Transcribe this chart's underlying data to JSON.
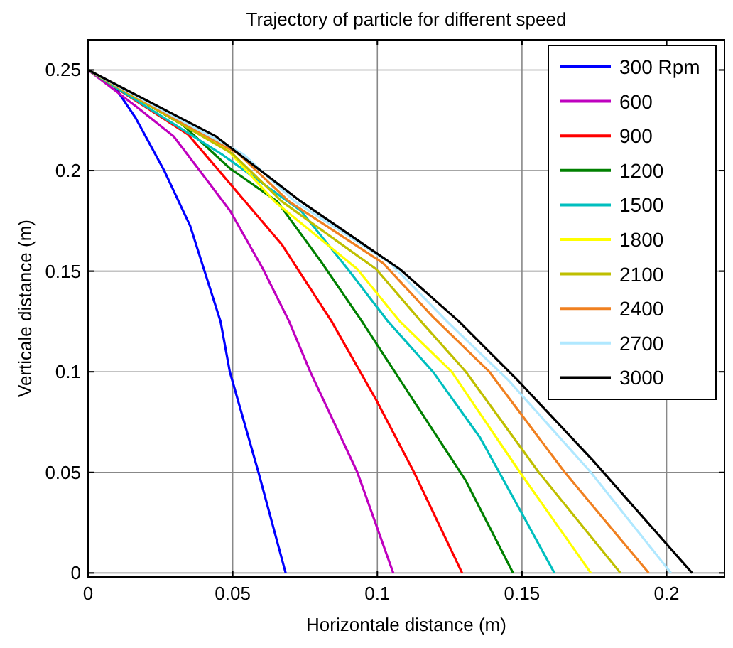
{
  "chart_data": {
    "type": "line",
    "title": "Trajectory of particle for different speed",
    "xlabel": "Horizontale distance (m)",
    "ylabel": "Verticale distance (m)",
    "xlim": [
      0,
      0.22
    ],
    "ylim": [
      -0.002,
      0.265
    ],
    "xticks": [
      0,
      0.05,
      0.1,
      0.15,
      0.2
    ],
    "yticks": [
      0,
      0.05,
      0.1,
      0.15,
      0.2,
      0.25
    ],
    "grid": true,
    "legend": "top right",
    "line_style": "solid",
    "marker": "none",
    "series": [
      {
        "name": "300 Rpm",
        "color": "#0000ff",
        "x": [
          0,
          0.0092,
          0.0165,
          0.0263,
          0.0353,
          0.0458,
          0.049,
          0.0589,
          0.0683
        ],
        "values": [
          0.25,
          0.2416,
          0.226,
          0.2,
          0.1725,
          0.125,
          0.1,
          0.05,
          0
        ]
      },
      {
        "name": "600",
        "color": "#bf00bf",
        "x": [
          0,
          0.0165,
          0.0296,
          0.0491,
          0.0605,
          0.0695,
          0.0768,
          0.0931,
          0.1055
        ],
        "values": [
          0.25,
          0.232,
          0.217,
          0.18,
          0.151,
          0.125,
          0.1,
          0.05,
          0
        ]
      },
      {
        "name": "900",
        "color": "#ff0000",
        "x": [
          0,
          0.0345,
          0.0458,
          0.0671,
          0.0842,
          0.0996,
          0.1127,
          0.1293
        ],
        "values": [
          0.25,
          0.218,
          0.199,
          0.163,
          0.125,
          0.086,
          0.05,
          0
        ]
      },
      {
        "name": "1200",
        "color": "#008000",
        "x": [
          0,
          0.0328,
          0.0491,
          0.0654,
          0.0809,
          0.0947,
          0.106,
          0.1306,
          0.1469
        ],
        "values": [
          0.25,
          0.2226,
          0.201,
          0.1846,
          0.154,
          0.125,
          0.1,
          0.0458,
          0
        ]
      },
      {
        "name": "1500",
        "color": "#00bfbf",
        "x": [
          0,
          0.046,
          0.0736,
          0.0898,
          0.1037,
          0.1192,
          0.1355,
          0.1502,
          0.1612
        ],
        "values": [
          0.25,
          0.2083,
          0.18,
          0.151,
          0.125,
          0.1,
          0.0673,
          0.029,
          0
        ]
      },
      {
        "name": "1800",
        "color": "#ffff00",
        "x": [
          0,
          0.048,
          0.0645,
          0.0931,
          0.1078,
          0.1257,
          0.1493,
          0.1738
        ],
        "values": [
          0.25,
          0.2106,
          0.1846,
          0.151,
          0.125,
          0.1,
          0.05,
          0
        ]
      },
      {
        "name": "2100",
        "color": "#bfbf00",
        "x": [
          0,
          0.05,
          0.067,
          0.0996,
          0.1151,
          0.1306,
          0.1558,
          0.184
        ],
        "values": [
          0.25,
          0.2083,
          0.1846,
          0.151,
          0.125,
          0.1,
          0.05,
          0
        ]
      },
      {
        "name": "2400",
        "color": "#f08020",
        "x": [
          0,
          0.052,
          0.0695,
          0.102,
          0.1192,
          0.1387,
          0.1648,
          0.1938
        ],
        "values": [
          0.25,
          0.2083,
          0.1846,
          0.154,
          0.1273,
          0.1,
          0.05,
          0
        ]
      },
      {
        "name": "2700",
        "color": "#b0e8ff",
        "x": [
          0,
          0.0535,
          0.0715,
          0.1045,
          0.1241,
          0.1453,
          0.1738,
          0.2015
        ],
        "values": [
          0.25,
          0.2083,
          0.1846,
          0.154,
          0.125,
          0.0958,
          0.05,
          0
        ]
      },
      {
        "name": "3000",
        "color": "#000000",
        "x": [
          0,
          0.0442,
          0.0736,
          0.1078,
          0.1282,
          0.1485,
          0.1746,
          0.2088
        ],
        "values": [
          0.25,
          0.217,
          0.1846,
          0.151,
          0.125,
          0.0958,
          0.0558,
          0
        ]
      }
    ]
  }
}
